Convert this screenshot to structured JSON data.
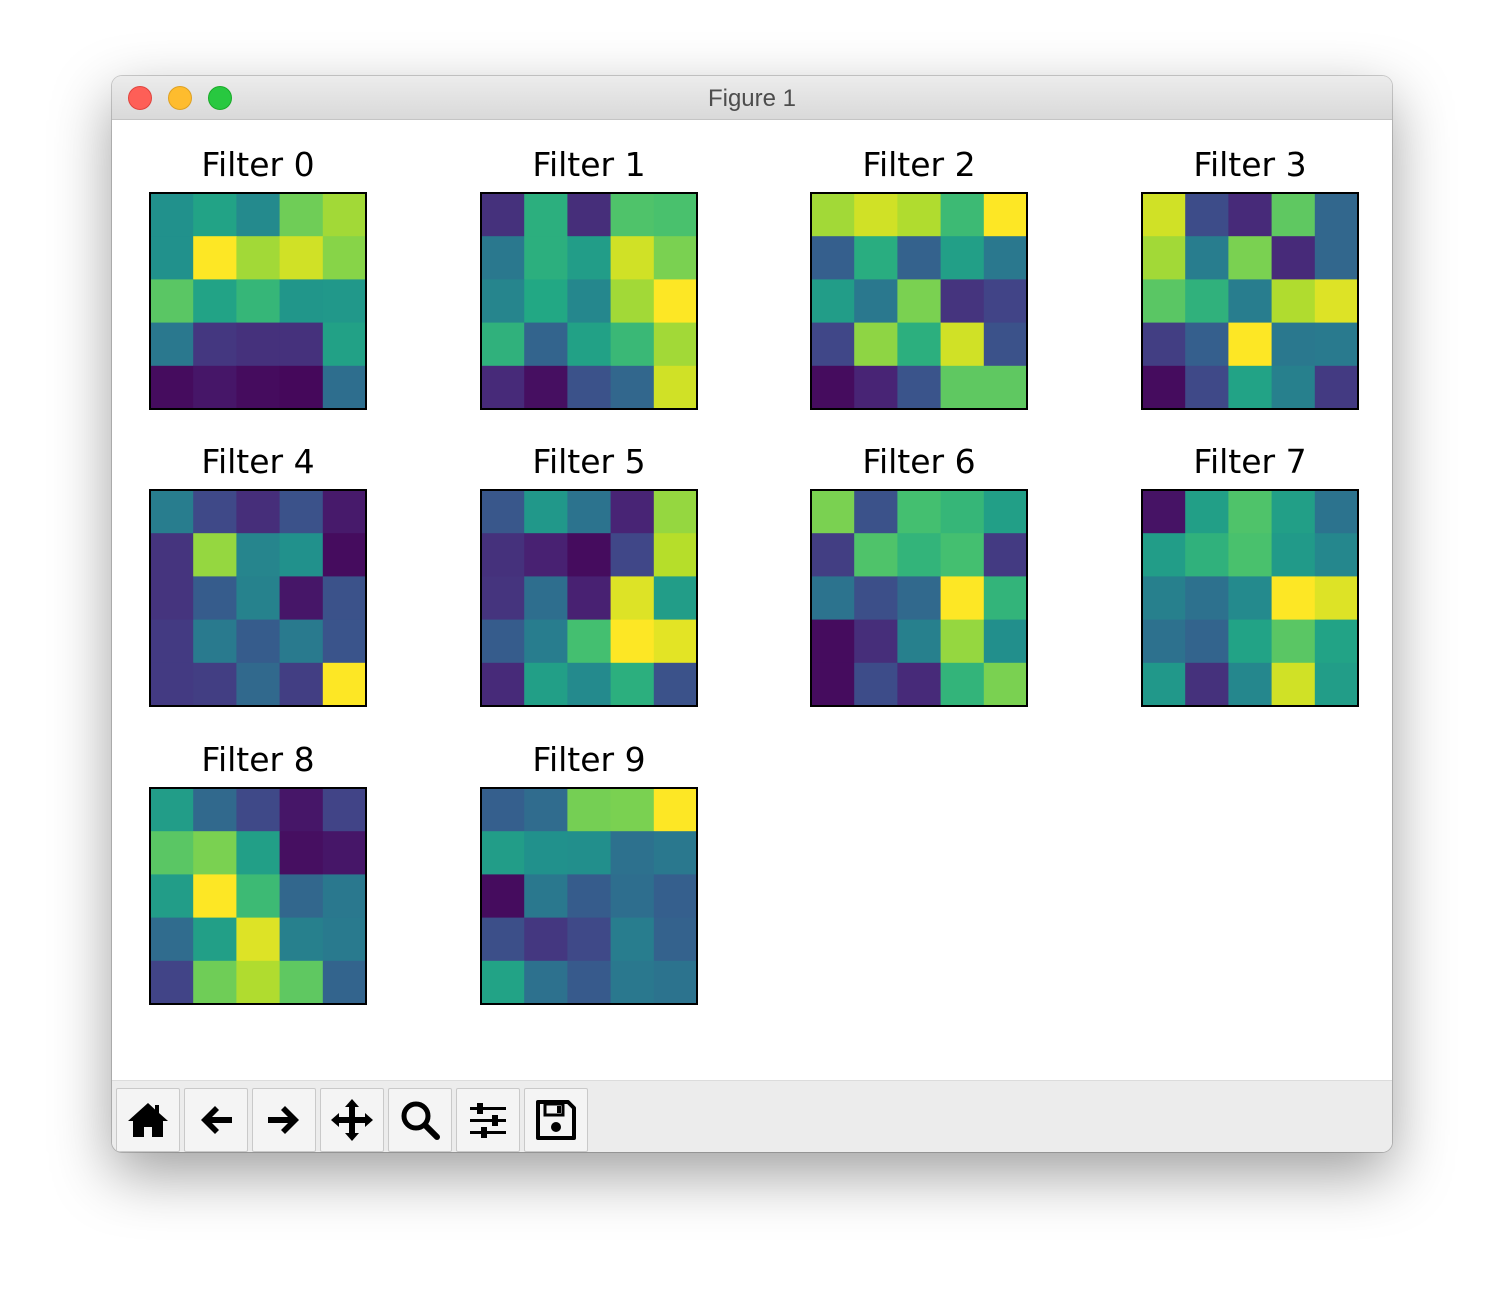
{
  "window": {
    "title": "Figure 1"
  },
  "toolbar": {
    "buttons": [
      {
        "name": "home-button",
        "icon": "home-icon"
      },
      {
        "name": "back-button",
        "icon": "arrow-left-icon"
      },
      {
        "name": "forward-button",
        "icon": "arrow-right-icon"
      },
      {
        "name": "pan-button",
        "icon": "move-arrows-icon"
      },
      {
        "name": "zoom-button",
        "icon": "magnifier-icon"
      },
      {
        "name": "configure-subplots-button",
        "icon": "sliders-icon"
      },
      {
        "name": "save-button",
        "icon": "floppy-disk-icon"
      }
    ]
  },
  "chart_data": {
    "type": "heatmap",
    "colormap": "viridis",
    "layout_grid": "3 rows x 4 columns",
    "value_range": [
      0,
      1
    ],
    "axes_ticks": "hidden",
    "panels": [
      {
        "title": "Filter 0",
        "values": [
          [
            0.5,
            0.58,
            0.47,
            0.78,
            0.86
          ],
          [
            0.5,
            1.0,
            0.86,
            0.93,
            0.82
          ],
          [
            0.74,
            0.58,
            0.66,
            0.52,
            0.53
          ],
          [
            0.4,
            0.16,
            0.14,
            0.14,
            0.57
          ],
          [
            0.03,
            0.06,
            0.03,
            0.02,
            0.36
          ]
        ]
      },
      {
        "title": "Filter 1",
        "values": [
          [
            0.14,
            0.63,
            0.13,
            0.72,
            0.71
          ],
          [
            0.4,
            0.63,
            0.55,
            0.93,
            0.8
          ],
          [
            0.45,
            0.6,
            0.46,
            0.86,
            1.0
          ],
          [
            0.64,
            0.32,
            0.57,
            0.67,
            0.86
          ],
          [
            0.12,
            0.04,
            0.25,
            0.33,
            0.93
          ]
        ]
      },
      {
        "title": "Filter 2",
        "values": [
          [
            0.86,
            0.93,
            0.88,
            0.68,
            1.0
          ],
          [
            0.3,
            0.62,
            0.31,
            0.56,
            0.4
          ],
          [
            0.55,
            0.4,
            0.8,
            0.15,
            0.2
          ],
          [
            0.21,
            0.83,
            0.63,
            0.93,
            0.25
          ],
          [
            0.03,
            0.1,
            0.26,
            0.75,
            0.75
          ]
        ]
      },
      {
        "title": "Filter 3",
        "values": [
          [
            0.93,
            0.23,
            0.12,
            0.75,
            0.33
          ],
          [
            0.86,
            0.42,
            0.8,
            0.12,
            0.33
          ],
          [
            0.74,
            0.64,
            0.42,
            0.88,
            0.95
          ],
          [
            0.18,
            0.3,
            1.0,
            0.4,
            0.41
          ],
          [
            0.03,
            0.22,
            0.58,
            0.43,
            0.17
          ]
        ]
      },
      {
        "title": "Filter 4",
        "values": [
          [
            0.42,
            0.22,
            0.13,
            0.25,
            0.07
          ],
          [
            0.15,
            0.84,
            0.45,
            0.5,
            0.03
          ],
          [
            0.15,
            0.29,
            0.44,
            0.06,
            0.25
          ],
          [
            0.17,
            0.41,
            0.29,
            0.41,
            0.26
          ],
          [
            0.17,
            0.18,
            0.34,
            0.18,
            1.0
          ]
        ]
      },
      {
        "title": "Filter 5",
        "values": [
          [
            0.27,
            0.53,
            0.38,
            0.1,
            0.84
          ],
          [
            0.14,
            0.09,
            0.03,
            0.21,
            0.89
          ],
          [
            0.15,
            0.36,
            0.09,
            0.95,
            0.55
          ],
          [
            0.29,
            0.42,
            0.7,
            1.0,
            0.96
          ],
          [
            0.12,
            0.56,
            0.47,
            0.63,
            0.25
          ]
        ]
      },
      {
        "title": "Filter 6",
        "values": [
          [
            0.8,
            0.25,
            0.7,
            0.66,
            0.56
          ],
          [
            0.18,
            0.72,
            0.65,
            0.7,
            0.17
          ],
          [
            0.38,
            0.24,
            0.34,
            1.0,
            0.65
          ],
          [
            0.03,
            0.13,
            0.43,
            0.84,
            0.49
          ],
          [
            0.03,
            0.23,
            0.12,
            0.65,
            0.8
          ]
        ]
      },
      {
        "title": "Filter 7",
        "values": [
          [
            0.05,
            0.56,
            0.72,
            0.56,
            0.38
          ],
          [
            0.55,
            0.64,
            0.71,
            0.54,
            0.46
          ],
          [
            0.43,
            0.37,
            0.47,
            1.0,
            0.95
          ],
          [
            0.37,
            0.32,
            0.58,
            0.74,
            0.58
          ],
          [
            0.53,
            0.14,
            0.46,
            0.93,
            0.55
          ]
        ]
      },
      {
        "title": "Filter 8",
        "values": [
          [
            0.55,
            0.34,
            0.22,
            0.06,
            0.2
          ],
          [
            0.74,
            0.8,
            0.56,
            0.04,
            0.06
          ],
          [
            0.55,
            1.0,
            0.68,
            0.33,
            0.4
          ],
          [
            0.35,
            0.56,
            0.95,
            0.43,
            0.41
          ],
          [
            0.2,
            0.78,
            0.88,
            0.75,
            0.32
          ]
        ]
      },
      {
        "title": "Filter 9",
        "values": [
          [
            0.3,
            0.35,
            0.79,
            0.8,
            1.0
          ],
          [
            0.55,
            0.5,
            0.49,
            0.37,
            0.4
          ],
          [
            0.03,
            0.4,
            0.29,
            0.36,
            0.3
          ],
          [
            0.24,
            0.16,
            0.22,
            0.42,
            0.31
          ],
          [
            0.58,
            0.37,
            0.28,
            0.4,
            0.38
          ]
        ]
      }
    ]
  }
}
